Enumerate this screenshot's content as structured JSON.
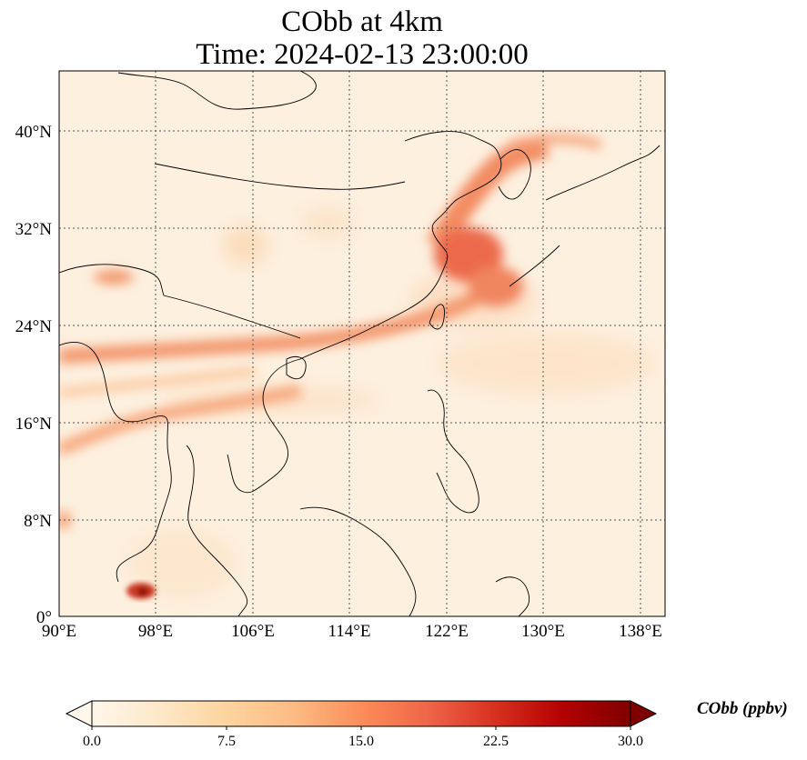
{
  "map": {
    "title_line1": "CObb at 4km",
    "title_line2": "Time: 2024-02-13 23:00:00",
    "lon_ticks": [
      "90°E",
      "98°E",
      "106°E",
      "114°E",
      "122°E",
      "130°E",
      "138°E"
    ],
    "lat_ticks": [
      "0°",
      "8°N",
      "16°N",
      "24°N",
      "32°N",
      "40°N"
    ],
    "extent": {
      "lon_min": 90,
      "lon_max": 140,
      "lat_min": 0,
      "lat_max": 45
    },
    "gridlines": true
  },
  "colorbar": {
    "label": "CObb (ppbv)",
    "ticks": [
      "0.0",
      "7.5",
      "15.0",
      "22.5",
      "30.0"
    ],
    "min": 0,
    "max": 30,
    "colormap": "OrRd",
    "extend": "both",
    "colors": [
      "#fff7ec",
      "#fee8c8",
      "#fdd49e",
      "#fdbb84",
      "#fc8d59",
      "#ef6548",
      "#d7301f",
      "#b30000",
      "#7f0000"
    ]
  }
}
